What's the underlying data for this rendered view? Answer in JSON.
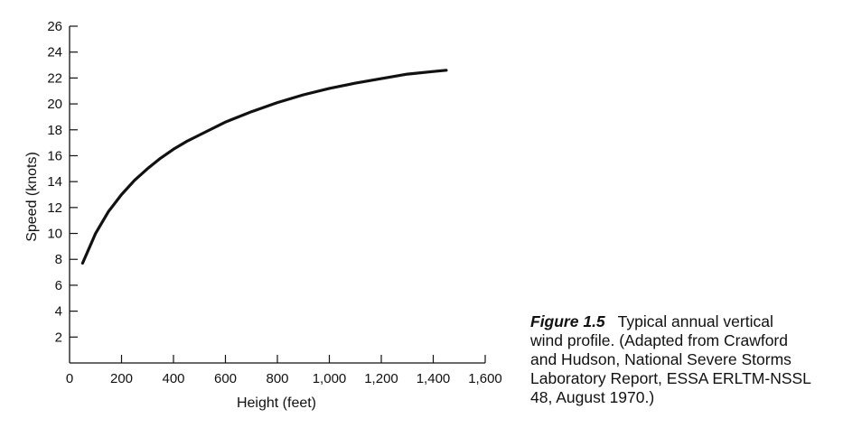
{
  "chart_data": {
    "type": "line",
    "title": "",
    "xlabel": "Height (feet)",
    "ylabel": "Speed (knots)",
    "xlim": [
      0,
      1600
    ],
    "ylim": [
      0,
      26
    ],
    "x_ticks": [
      0,
      200,
      400,
      600,
      800,
      1000,
      1200,
      1400,
      1600
    ],
    "x_tick_labels": [
      "0",
      "200",
      "400",
      "600",
      "800",
      "1,000",
      "1,200",
      "1,400",
      "1,600"
    ],
    "y_ticks": [
      2,
      4,
      6,
      8,
      10,
      12,
      14,
      16,
      18,
      20,
      22,
      24,
      26
    ],
    "y_tick_labels": [
      "2",
      "4",
      "6",
      "8",
      "10",
      "12",
      "14",
      "16",
      "18",
      "20",
      "22",
      "24",
      "26"
    ],
    "grid": false,
    "series": [
      {
        "x": [
          50,
          100,
          150,
          200,
          250,
          300,
          350,
          400,
          450,
          500,
          600,
          700,
          800,
          900,
          1000,
          1100,
          1200,
          1300,
          1400,
          1450
        ],
        "y": [
          7.7,
          10.0,
          11.7,
          13.0,
          14.1,
          15.0,
          15.8,
          16.5,
          17.1,
          17.6,
          18.6,
          19.4,
          20.1,
          20.7,
          21.2,
          21.6,
          21.95,
          22.3,
          22.5,
          22.6
        ]
      }
    ]
  },
  "caption": {
    "label": "Figure 1.5",
    "lines": [
      "Typical annual vertical",
      "wind profile. (Adapted from Crawford",
      "and Hudson, National Severe Storms",
      "Laboratory Report, ESSA ERLTM-NSSL",
      "48, August 1970.)"
    ]
  }
}
